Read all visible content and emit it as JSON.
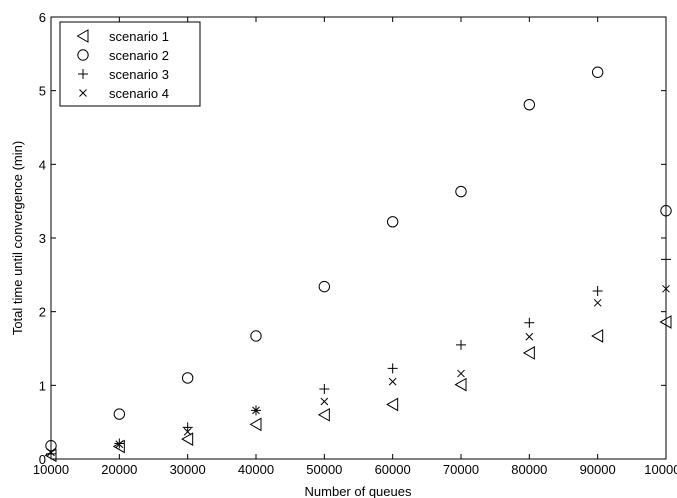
{
  "chart_data": {
    "type": "scatter",
    "title": "",
    "xlabel": "Number of queues",
    "ylabel": "Total time until convergence (min)",
    "xlim": [
      10000,
      100000
    ],
    "ylim": [
      0,
      6
    ],
    "xticks": [
      10000,
      20000,
      30000,
      40000,
      50000,
      60000,
      70000,
      80000,
      90000,
      100000
    ],
    "yticks": [
      0,
      1,
      2,
      3,
      4,
      5,
      6
    ],
    "grid": false,
    "legend": {
      "position": "top-left"
    },
    "x": [
      10000,
      20000,
      30000,
      40000,
      50000,
      60000,
      70000,
      80000,
      90000,
      100000
    ],
    "series": [
      {
        "name": "scenario 1",
        "marker": "triangle-left",
        "values": [
          0.05,
          0.17,
          0.27,
          0.47,
          0.6,
          0.74,
          1.01,
          1.44,
          1.67,
          1.86
        ]
      },
      {
        "name": "scenario 2",
        "marker": "circle",
        "values": [
          0.18,
          0.61,
          1.1,
          1.67,
          2.34,
          3.22,
          3.63,
          4.81,
          5.25,
          3.37
        ]
      },
      {
        "name": "scenario 3",
        "marker": "plus",
        "values": [
          0.07,
          0.21,
          0.43,
          0.66,
          0.95,
          1.23,
          1.55,
          1.85,
          2.28,
          2.71
        ]
      },
      {
        "name": "scenario 4",
        "marker": "x",
        "values": [
          0.09,
          0.2,
          0.37,
          0.66,
          0.78,
          1.05,
          1.16,
          1.66,
          2.12,
          2.31
        ]
      }
    ]
  }
}
